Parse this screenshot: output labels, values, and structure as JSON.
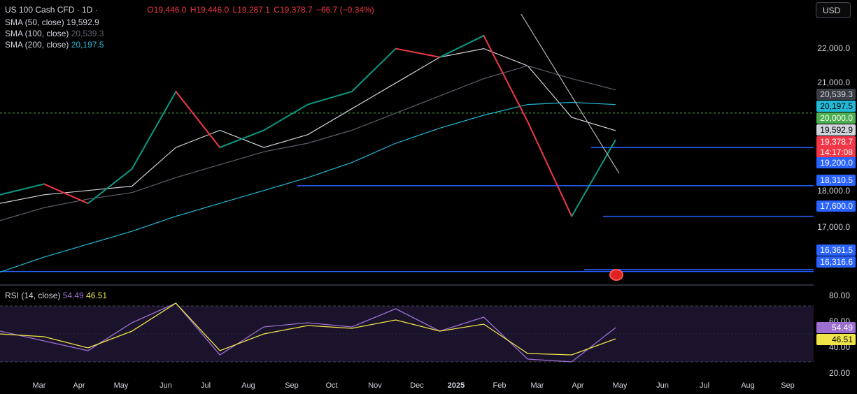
{
  "header": {
    "symbol": "US 100 Cash CFD · 1D ·",
    "open": "O19,446.0",
    "high": "H19,446.0",
    "low": "L19,287.1",
    "close": "C19,378.7",
    "change": "−66.7 (−0.34%)"
  },
  "indicators": [
    {
      "label": "SMA (50, close)",
      "value": "19,592.9",
      "color": "#d1d4dc"
    },
    {
      "label": "SMA (100, close)",
      "value": "20,539.3",
      "color": "#5d606b"
    },
    {
      "label": "SMA (200, close)",
      "value": "20,197.5",
      "color": "#22b9d6"
    }
  ],
  "rsi_legend": {
    "label": "RSI (14, close)",
    "value1": "54.49",
    "value2": "46.51"
  },
  "currency_button": "USD",
  "price_axis": [
    "22,000.0",
    "21,000.0",
    "18,000.0",
    "17,000.0"
  ],
  "price_tags": {
    "sma100": "20,539.3",
    "sma200": "20,197.5",
    "level20000": "20,000.0",
    "sma50": "19,592.9",
    "last": "19,378.7",
    "countdown": "14:17:08",
    "level19200": "19,200.0",
    "level18310": "18,310.5",
    "level17600": "17,600.0",
    "level16361": "16,361.5",
    "level16316": "16,316.6"
  },
  "rsi_axis": [
    "80.00",
    "60.00",
    "40.00",
    "20.00"
  ],
  "rsi_tags": {
    "rsi": "54.49",
    "ma": "46.51"
  },
  "time_axis": [
    "Mar",
    "Apr",
    "May",
    "Jun",
    "Jul",
    "Aug",
    "Sep",
    "Oct",
    "Nov",
    "Dec",
    "2025",
    "Feb",
    "Mar",
    "Apr",
    "May",
    "Jun",
    "Jul",
    "Aug",
    "Sep"
  ],
  "chart_data": {
    "type": "line",
    "symbol": "US 100 Cash CFD",
    "interval": "1D",
    "x": [
      "Mar",
      "Apr",
      "May",
      "Jun",
      "Jul",
      "Aug",
      "Sep",
      "Oct",
      "Nov",
      "Dec",
      "2025",
      "Feb",
      "Mar",
      "Apr",
      "May"
    ],
    "series": [
      {
        "name": "US 100 Cash CFD",
        "values": [
          18100,
          18350,
          17900,
          18700,
          20500,
          19200,
          19600,
          20200,
          20500,
          21500,
          21300,
          21800,
          19800,
          17600,
          19378.7
        ]
      },
      {
        "name": "SMA (50, close)",
        "values": [
          17900,
          18100,
          18200,
          18300,
          19200,
          19600,
          19200,
          19500,
          20100,
          20700,
          21300,
          21500,
          21100,
          19900,
          19592.9
        ]
      },
      {
        "name": "SMA (100, close)",
        "values": [
          17500,
          17800,
          18000,
          18150,
          18500,
          18800,
          19100,
          19300,
          19600,
          20000,
          20400,
          20800,
          21100,
          20800,
          20539.3
        ]
      },
      {
        "name": "SMA (200, close)",
        "values": [
          16300,
          16650,
          16950,
          17250,
          17600,
          17900,
          18200,
          18500,
          18850,
          19300,
          19650,
          19950,
          20200,
          20250,
          20197.5
        ]
      }
    ],
    "horizontal_levels": [
      20000.0,
      19200.0,
      18310.5,
      17600.0,
      16361.5,
      16316.6
    ],
    "ylim": [
      16050,
      22500
    ],
    "rsi": {
      "name": "RSI (14, close)",
      "values": [
        52,
        45,
        38,
        58,
        72,
        35,
        55,
        58,
        55,
        68,
        52,
        62,
        32,
        30,
        54.49
      ],
      "ma_values": [
        50,
        48,
        40,
        52,
        72,
        38,
        50,
        56,
        54,
        60,
        52,
        57,
        36,
        35,
        46.51
      ],
      "ylim": [
        20,
        80
      ],
      "bands": [
        30,
        70
      ]
    }
  }
}
